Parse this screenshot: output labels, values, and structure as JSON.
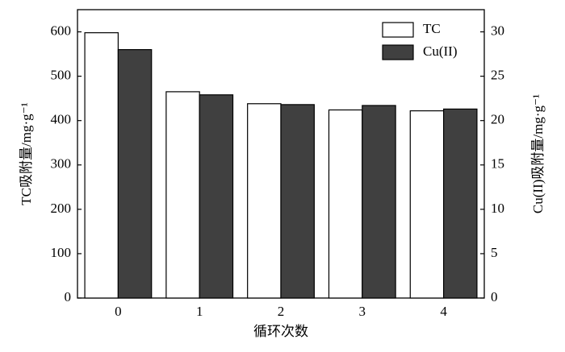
{
  "chart_data": {
    "type": "bar",
    "x_label": "循环次数",
    "y_label": "TC吸附量/mg·g⁻¹",
    "y2_label": "Cu(II)吸附量/mg·g⁻¹",
    "categories": [
      "0",
      "1",
      "2",
      "3",
      "4"
    ],
    "series": [
      {
        "name": "TC",
        "color": "#ffffff",
        "values": [
          598,
          465,
          438,
          424,
          422
        ]
      },
      {
        "name": "Cu(II)",
        "color": "#404040",
        "axis": "y2",
        "values": [
          28.0,
          22.9,
          21.8,
          21.7,
          21.3
        ]
      }
    ],
    "ylim": [
      0,
      650
    ],
    "yticks": [
      0,
      100,
      200,
      300,
      400,
      500,
      600
    ],
    "y2lim": [
      0,
      32.5
    ],
    "y2ticks": [
      0,
      5,
      10,
      15,
      20,
      25,
      30
    ],
    "grid": false,
    "legend": "top-right"
  }
}
